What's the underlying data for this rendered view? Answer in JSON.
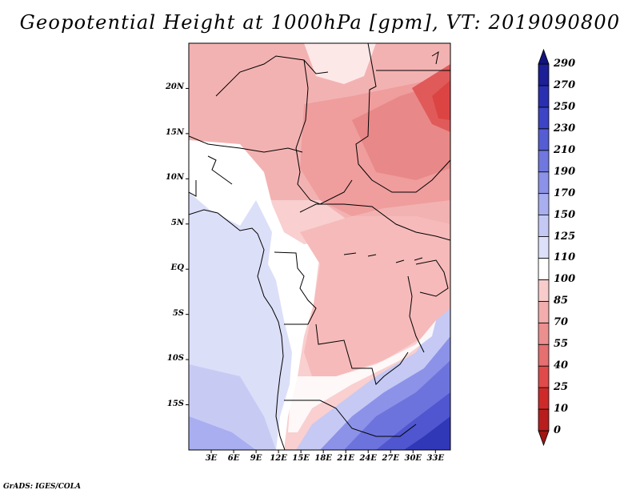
{
  "title": "Geopotential Height at 1000hPa [gpm], VT: 2019090800",
  "footer": "GrADS: IGES/COLA",
  "map": {
    "lon_range": [
      0,
      35
    ],
    "lat_range": [
      -20,
      25
    ],
    "lat_ticks": [
      {
        "lat": 20,
        "label": "20N"
      },
      {
        "lat": 15,
        "label": "15N"
      },
      {
        "lat": 10,
        "label": "10N"
      },
      {
        "lat": 5,
        "label": "5N"
      },
      {
        "lat": 0,
        "label": "EQ"
      },
      {
        "lat": -5,
        "label": "5S"
      },
      {
        "lat": -10,
        "label": "10S"
      },
      {
        "lat": -15,
        "label": "15S"
      }
    ],
    "lon_ticks": [
      {
        "lon": 3,
        "label": "3E"
      },
      {
        "lon": 6,
        "label": "6E"
      },
      {
        "lon": 9,
        "label": "9E"
      },
      {
        "lon": 12,
        "label": "12E"
      },
      {
        "lon": 15,
        "label": "15E"
      },
      {
        "lon": 18,
        "label": "18E"
      },
      {
        "lon": 21,
        "label": "21E"
      },
      {
        "lon": 24,
        "label": "24E"
      },
      {
        "lon": 27,
        "label": "27E"
      },
      {
        "lon": 30,
        "label": "30E"
      },
      {
        "lon": 33,
        "label": "33E"
      }
    ]
  },
  "colorbar": {
    "levels": [
      "0",
      "10",
      "25",
      "40",
      "55",
      "70",
      "85",
      "100",
      "110",
      "125",
      "150",
      "170",
      "190",
      "210",
      "230",
      "250",
      "270",
      "290"
    ],
    "colors": [
      "#a01515",
      "#b81e1e",
      "#cf2a2a",
      "#e04a4a",
      "#e66f6f",
      "#ec8f8f",
      "#f3adad",
      "#f9cccc",
      "#ffffff",
      "#dde0f8",
      "#c4c8f4",
      "#a8aef0",
      "#8c92e8",
      "#7077de",
      "#555dd3",
      "#3d44c5",
      "#2a2fb2",
      "#1c1f96",
      "#12147a"
    ]
  }
}
